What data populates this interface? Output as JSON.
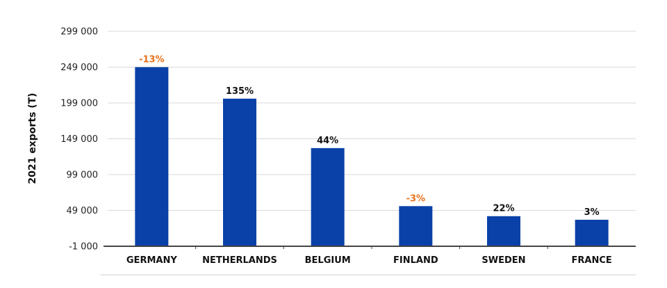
{
  "chart_data": {
    "type": "bar",
    "title": "",
    "xlabel": "",
    "ylabel": "2021 exports (T)",
    "categories": [
      "GERMANY",
      "NETHERLANDS",
      "BELGIUM",
      "FINLAND",
      "SWEDEN",
      "FRANCE"
    ],
    "values": [
      249000,
      205000,
      136000,
      55000,
      41000,
      36000
    ],
    "data_labels": [
      "-13%",
      "135%",
      "44%",
      "-3%",
      "22%",
      "3%"
    ],
    "data_label_colors": [
      "#e8711a",
      "#111111",
      "#111111",
      "#e8711a",
      "#111111",
      "#111111"
    ],
    "ylim": [
      -1000,
      299000
    ],
    "yticks": [
      -1000,
      49000,
      99000,
      149000,
      199000,
      249000,
      299000
    ],
    "ytick_labels": [
      "-1 000",
      "49 000",
      "99 000",
      "149 000",
      "199 000",
      "249 000",
      "299 000"
    ],
    "grid": true,
    "legend": "none",
    "colors": {
      "bar": "#0a41a8",
      "grid": "#d9d9d9",
      "axis": "#444444",
      "negative_label": "#e8711a"
    }
  }
}
